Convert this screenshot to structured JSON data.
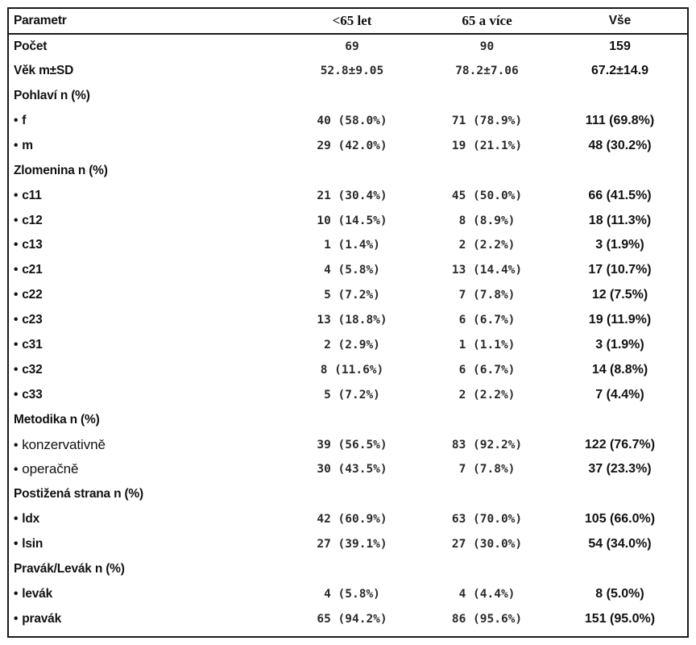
{
  "columns": [
    "Parametr",
    "<65 let",
    "65 a více",
    "Vše"
  ],
  "bullet": "•",
  "rows": [
    {
      "label": "Počet",
      "v1": "69",
      "v2": "90",
      "v3": "159"
    },
    {
      "label": "Věk m±SD",
      "v1": "52.8±9.05",
      "v2": "78.2±7.06",
      "v3": "67.2±14.9"
    },
    {
      "label": "Pohlaví n (%)",
      "v1": "",
      "v2": "",
      "v3": ""
    },
    {
      "label": "f",
      "v1": "40 (58.0%)",
      "v2": "71 (78.9%)",
      "v3": "111 (69.8%)"
    },
    {
      "label": "m",
      "v1": "29 (42.0%)",
      "v2": "19 (21.1%)",
      "v3": "48 (30.2%)"
    },
    {
      "label": "Zlomenina n (%)",
      "v1": "",
      "v2": "",
      "v3": ""
    },
    {
      "label": "c11",
      "v1": "21 (30.4%)",
      "v2": "45 (50.0%)",
      "v3": "66 (41.5%)"
    },
    {
      "label": "c12",
      "v1": "10 (14.5%)",
      "v2": "8 (8.9%)",
      "v3": "18 (11.3%)"
    },
    {
      "label": "c13",
      "v1": "1 (1.4%)",
      "v2": "2 (2.2%)",
      "v3": "3 (1.9%)"
    },
    {
      "label": "c21",
      "v1": "4 (5.8%)",
      "v2": "13 (14.4%)",
      "v3": "17 (10.7%)"
    },
    {
      "label": "c22",
      "v1": "5 (7.2%)",
      "v2": "7 (7.8%)",
      "v3": "12 (7.5%)"
    },
    {
      "label": "c23",
      "v1": "13 (18.8%)",
      "v2": "6 (6.7%)",
      "v3": "19 (11.9%)"
    },
    {
      "label": "c31",
      "v1": "2 (2.9%)",
      "v2": "1 (1.1%)",
      "v3": "3 (1.9%)"
    },
    {
      "label": "c32",
      "v1": "8 (11.6%)",
      "v2": "6 (6.7%)",
      "v3": "14 (8.8%)"
    },
    {
      "label": "c33",
      "v1": "5 (7.2%)",
      "v2": "2 (2.2%)",
      "v3": "7 (4.4%)"
    },
    {
      "label": "Metodika n (%)",
      "v1": "",
      "v2": "",
      "v3": ""
    },
    {
      "label": "konzervativně",
      "v1": "39 (56.5%)",
      "v2": "83 (92.2%)",
      "v3": "122 (76.7%)"
    },
    {
      "label": "operačně",
      "v1": "30 (43.5%)",
      "v2": "7 (7.8%)",
      "v3": "37 (23.3%)"
    },
    {
      "label": "Postižená strana n (%)",
      "v1": "",
      "v2": "",
      "v3": ""
    },
    {
      "label": "ldx",
      "v1": "42 (60.9%)",
      "v2": "63 (70.0%)",
      "v3": "105 (66.0%)"
    },
    {
      "label": "lsin",
      "v1": "27 (39.1%)",
      "v2": "27 (30.0%)",
      "v3": "54 (34.0%)"
    },
    {
      "label": "Pravák/Levák n (%)",
      "v1": "",
      "v2": "",
      "v3": ""
    },
    {
      "label": "levák",
      "v1": "4 (5.8%)",
      "v2": "4 (4.4%)",
      "v3": "8 (5.0%)"
    },
    {
      "label": "pravák",
      "v1": "65 (94.2%)",
      "v2": "86 (95.6%)",
      "v3": "151 (95.0%)"
    }
  ]
}
